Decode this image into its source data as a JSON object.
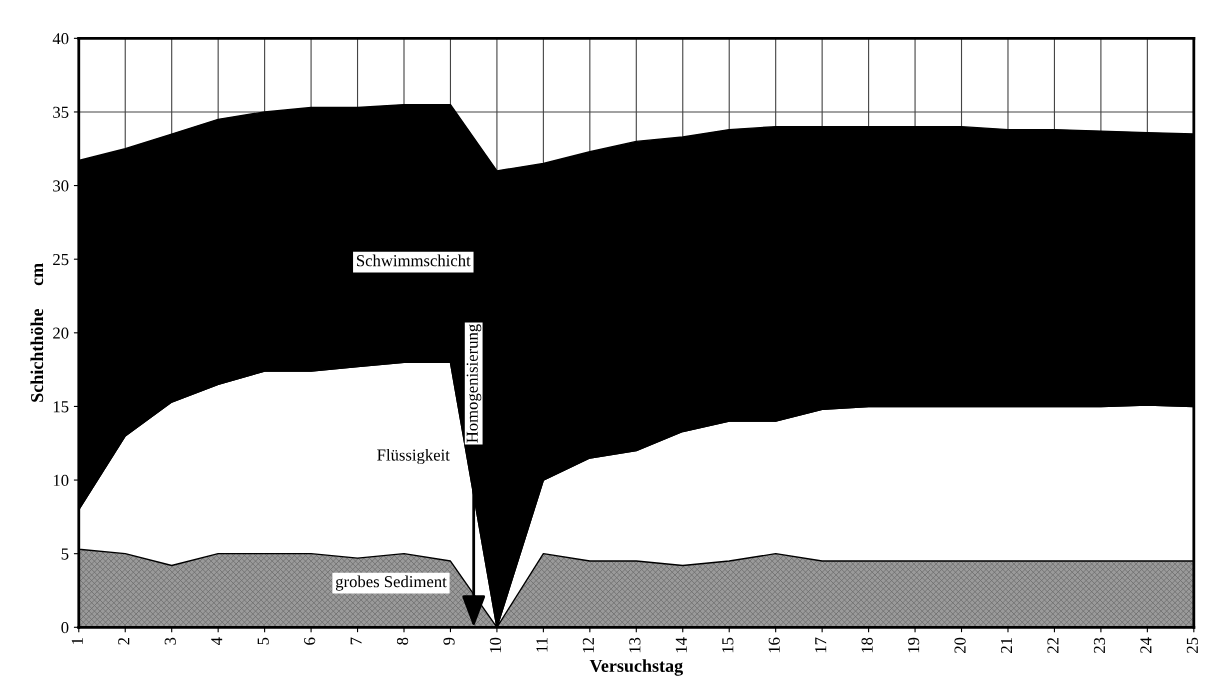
{
  "chart_data": {
    "type": "area",
    "stacked": true,
    "xlabel": "Versuchstag",
    "ylabel": "Schichthöhe     cm",
    "x": [
      1,
      2,
      3,
      4,
      5,
      6,
      7,
      8,
      9,
      10,
      11,
      12,
      13,
      14,
      15,
      16,
      17,
      18,
      19,
      20,
      21,
      22,
      23,
      24,
      25
    ],
    "series": [
      {
        "name": "grobes Sediment",
        "color": "#9a9a9a",
        "values": [
          5.3,
          5.0,
          4.2,
          5.0,
          5.0,
          5.0,
          4.7,
          5.0,
          4.5,
          0,
          5.0,
          4.5,
          4.5,
          4.2,
          4.5,
          5.0,
          4.5,
          4.5,
          4.5,
          4.5,
          4.5,
          4.5,
          4.5,
          4.5,
          4.5
        ]
      },
      {
        "name": "Flüssigkeit",
        "color": "#ffffff",
        "values": [
          2.7,
          8.0,
          11.1,
          11.5,
          12.4,
          12.4,
          13.0,
          13.0,
          13.5,
          0,
          5.0,
          7.0,
          7.5,
          9.1,
          9.5,
          9.0,
          10.3,
          10.5,
          10.5,
          10.5,
          10.5,
          10.5,
          10.5,
          10.6,
          10.5
        ]
      },
      {
        "name": "Schwimmschicht",
        "color": "#000000",
        "values": [
          23.7,
          19.5,
          18.2,
          18.0,
          17.6,
          17.9,
          17.6,
          17.5,
          17.5,
          31.0,
          21.5,
          20.8,
          21.0,
          20.0,
          19.8,
          20.0,
          19.2,
          19.0,
          19.0,
          19.0,
          18.8,
          18.8,
          18.7,
          18.5,
          18.5
        ]
      }
    ],
    "annotations": [
      {
        "text": "Homogenisierung",
        "x": 9.5,
        "y": 0
      }
    ],
    "xlim": [
      1,
      25
    ],
    "xticks": [
      1,
      2,
      3,
      4,
      5,
      6,
      7,
      8,
      9,
      10,
      11,
      12,
      13,
      14,
      15,
      16,
      17,
      18,
      19,
      20,
      21,
      22,
      23,
      24,
      25
    ],
    "ylim": [
      0,
      40
    ],
    "yticks": [
      0,
      5,
      10,
      15,
      20,
      25,
      30,
      35,
      40
    ],
    "grid": true,
    "legend": false
  }
}
